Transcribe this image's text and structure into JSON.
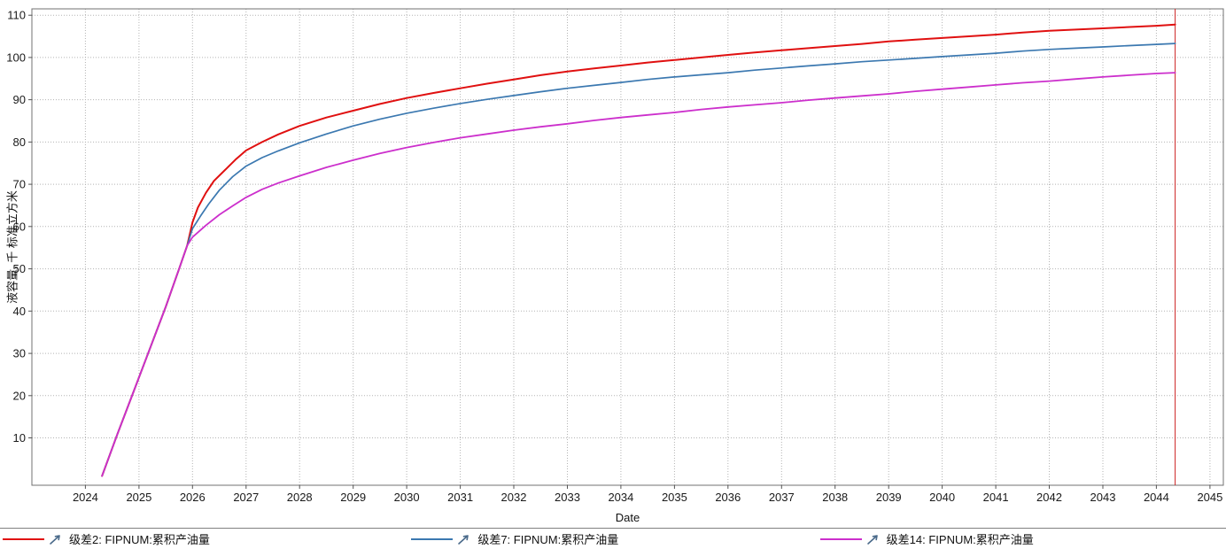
{
  "chart_data": {
    "type": "line",
    "title": "",
    "xlabel": "Date",
    "ylabel": "液容量, 千 标准立方米",
    "xlim": [
      2023.0,
      2045.25
    ],
    "ylim": [
      -1.2,
      111.5
    ],
    "xticks": [
      2024,
      2025,
      2026,
      2027,
      2028,
      2029,
      2030,
      2031,
      2032,
      2033,
      2034,
      2035,
      2036,
      2037,
      2038,
      2039,
      2040,
      2041,
      2042,
      2043,
      2044,
      2045
    ],
    "yticks": [
      10,
      20,
      30,
      40,
      50,
      60,
      70,
      80,
      90,
      100,
      110
    ],
    "grid": true,
    "legend_position": "bottom",
    "end_marker": {
      "x": 2044.35,
      "color": "#cc2222"
    },
    "colors": {
      "grid": "#b3b3b3",
      "border": "#707070",
      "tick_text": "#1a1a1a",
      "legend_arrow": "#4a6a8a"
    },
    "icons": {
      "legend_marker": "arrow-up-right-icon"
    },
    "series": [
      {
        "name": "级差2: FIPNUM:累积产油量",
        "color": "#e01010",
        "width": 2,
        "points": [
          [
            2024.31,
            1
          ],
          [
            2024.6,
            11
          ],
          [
            2024.9,
            21
          ],
          [
            2025.2,
            31
          ],
          [
            2025.5,
            41
          ],
          [
            2025.75,
            50
          ],
          [
            2025.9,
            55.5
          ],
          [
            2026.0,
            61
          ],
          [
            2026.1,
            64.5
          ],
          [
            2026.25,
            68
          ],
          [
            2026.4,
            70.8
          ],
          [
            2026.6,
            73.3
          ],
          [
            2026.8,
            75.8
          ],
          [
            2027.0,
            78
          ],
          [
            2027.3,
            80
          ],
          [
            2027.6,
            81.8
          ],
          [
            2028.0,
            83.8
          ],
          [
            2028.5,
            85.8
          ],
          [
            2029,
            87.4
          ],
          [
            2029.5,
            89
          ],
          [
            2030,
            90.4
          ],
          [
            2030.5,
            91.6
          ],
          [
            2031,
            92.7
          ],
          [
            2031.5,
            93.8
          ],
          [
            2032,
            94.8
          ],
          [
            2032.5,
            95.8
          ],
          [
            2033,
            96.7
          ],
          [
            2033.5,
            97.4
          ],
          [
            2034,
            98.1
          ],
          [
            2034.5,
            98.8
          ],
          [
            2035,
            99.4
          ],
          [
            2035.5,
            100
          ],
          [
            2036,
            100.6
          ],
          [
            2036.5,
            101.2
          ],
          [
            2037,
            101.7
          ],
          [
            2037.5,
            102.2
          ],
          [
            2038,
            102.7
          ],
          [
            2038.5,
            103.2
          ],
          [
            2039,
            103.8
          ],
          [
            2039.5,
            104.2
          ],
          [
            2040,
            104.6
          ],
          [
            2040.5,
            105
          ],
          [
            2041,
            105.4
          ],
          [
            2041.5,
            105.9
          ],
          [
            2042,
            106.3
          ],
          [
            2042.5,
            106.6
          ],
          [
            2043,
            106.9
          ],
          [
            2043.5,
            107.2
          ],
          [
            2044,
            107.5
          ],
          [
            2044.35,
            107.8
          ]
        ]
      },
      {
        "name": "级差7: FIPNUM:累积产油量",
        "color": "#3b78b0",
        "width": 1.7,
        "points": [
          [
            2024.31,
            1
          ],
          [
            2024.6,
            11
          ],
          [
            2024.9,
            21
          ],
          [
            2025.2,
            31
          ],
          [
            2025.5,
            41
          ],
          [
            2025.75,
            50
          ],
          [
            2025.9,
            55.5
          ],
          [
            2026.0,
            59.5
          ],
          [
            2026.15,
            62.5
          ],
          [
            2026.3,
            65.3
          ],
          [
            2026.5,
            68.6
          ],
          [
            2026.75,
            71.8
          ],
          [
            2027,
            74.3
          ],
          [
            2027.3,
            76.3
          ],
          [
            2027.6,
            77.9
          ],
          [
            2028,
            79.8
          ],
          [
            2028.5,
            81.9
          ],
          [
            2029,
            83.8
          ],
          [
            2029.5,
            85.4
          ],
          [
            2030,
            86.8
          ],
          [
            2030.5,
            88
          ],
          [
            2031,
            89.1
          ],
          [
            2031.5,
            90.1
          ],
          [
            2032,
            91
          ],
          [
            2032.5,
            91.9
          ],
          [
            2033,
            92.7
          ],
          [
            2033.5,
            93.4
          ],
          [
            2034,
            94.1
          ],
          [
            2034.5,
            94.8
          ],
          [
            2035,
            95.4
          ],
          [
            2035.5,
            95.9
          ],
          [
            2036,
            96.4
          ],
          [
            2036.5,
            97
          ],
          [
            2037,
            97.5
          ],
          [
            2037.5,
            98
          ],
          [
            2038,
            98.5
          ],
          [
            2038.5,
            99
          ],
          [
            2039,
            99.4
          ],
          [
            2039.5,
            99.8
          ],
          [
            2040,
            100.2
          ],
          [
            2040.5,
            100.6
          ],
          [
            2041,
            101
          ],
          [
            2041.5,
            101.5
          ],
          [
            2042,
            101.9
          ],
          [
            2042.5,
            102.2
          ],
          [
            2043,
            102.5
          ],
          [
            2043.5,
            102.8
          ],
          [
            2044,
            103.1
          ],
          [
            2044.35,
            103.3
          ]
        ]
      },
      {
        "name": "级差14: FIPNUM:累积产油量",
        "color": "#cc2fcc",
        "width": 1.8,
        "points": [
          [
            2024.31,
            1
          ],
          [
            2024.6,
            11
          ],
          [
            2024.9,
            21
          ],
          [
            2025.2,
            31
          ],
          [
            2025.5,
            41
          ],
          [
            2025.75,
            50
          ],
          [
            2025.9,
            55.5
          ],
          [
            2026.0,
            57.5
          ],
          [
            2026.25,
            60.3
          ],
          [
            2026.5,
            62.8
          ],
          [
            2026.75,
            64.9
          ],
          [
            2027,
            66.9
          ],
          [
            2027.3,
            68.8
          ],
          [
            2027.6,
            70.3
          ],
          [
            2028,
            72
          ],
          [
            2028.5,
            74
          ],
          [
            2029,
            75.7
          ],
          [
            2029.5,
            77.3
          ],
          [
            2030,
            78.7
          ],
          [
            2030.5,
            79.9
          ],
          [
            2031,
            81
          ],
          [
            2031.5,
            81.9
          ],
          [
            2032,
            82.8
          ],
          [
            2032.5,
            83.6
          ],
          [
            2033,
            84.3
          ],
          [
            2033.5,
            85.1
          ],
          [
            2034,
            85.8
          ],
          [
            2034.5,
            86.4
          ],
          [
            2035,
            87
          ],
          [
            2035.5,
            87.7
          ],
          [
            2036,
            88.3
          ],
          [
            2036.5,
            88.8
          ],
          [
            2037,
            89.3
          ],
          [
            2037.5,
            89.9
          ],
          [
            2038,
            90.4
          ],
          [
            2038.5,
            90.9
          ],
          [
            2039,
            91.4
          ],
          [
            2039.5,
            92
          ],
          [
            2040,
            92.5
          ],
          [
            2040.5,
            93
          ],
          [
            2041,
            93.5
          ],
          [
            2041.5,
            94
          ],
          [
            2042,
            94.4
          ],
          [
            2042.5,
            94.9
          ],
          [
            2043,
            95.4
          ],
          [
            2043.5,
            95.8
          ],
          [
            2044,
            96.2
          ],
          [
            2044.35,
            96.4
          ]
        ]
      }
    ]
  }
}
